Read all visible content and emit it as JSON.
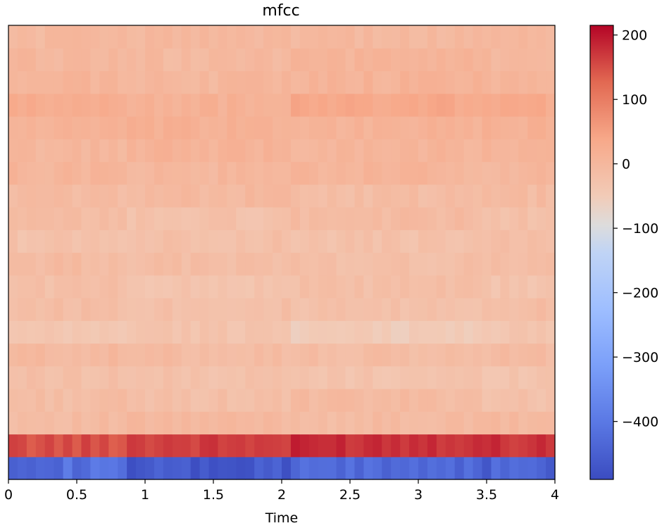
{
  "chart_data": {
    "type": "heatmap",
    "title": "mfcc",
    "xlabel": "Time",
    "ylabel": "",
    "xlim": [
      0,
      4.0
    ],
    "x_ticks": [
      0,
      0.5,
      1,
      1.5,
      2,
      2.5,
      3,
      3.5,
      4
    ],
    "x_tick_labels": [
      "0",
      "0.5",
      "1",
      "1.5",
      "2",
      "2.5",
      "3",
      "3.5",
      "4"
    ],
    "n_coefficients": 20,
    "segments": [
      {
        "start": 0.0,
        "end": 0.85
      },
      {
        "start": 0.85,
        "end": 2.1
      },
      {
        "start": 2.1,
        "end": 3.45
      },
      {
        "start": 3.45,
        "end": 4.0
      }
    ],
    "rows_bottom_to_top": [
      {
        "coef": 0,
        "segment_values": [
          -420,
          -470,
          -430,
          -440
        ]
      },
      {
        "coef": 1,
        "segment_values": [
          150,
          165,
          180,
          175
        ]
      },
      {
        "coef": 2,
        "segment_values": [
          -10,
          -5,
          -10,
          -5
        ]
      },
      {
        "coef": 3,
        "segment_values": [
          -15,
          -20,
          -10,
          -25
        ]
      },
      {
        "coef": 4,
        "segment_values": [
          -20,
          -25,
          -30,
          -30
        ]
      },
      {
        "coef": 5,
        "segment_values": [
          -5,
          -10,
          -15,
          -10
        ]
      },
      {
        "coef": 6,
        "segment_values": [
          -40,
          -30,
          -50,
          -35
        ]
      },
      {
        "coef": 7,
        "segment_values": [
          -15,
          -20,
          -25,
          -15
        ]
      },
      {
        "coef": 8,
        "segment_values": [
          -20,
          -30,
          -20,
          -30
        ]
      },
      {
        "coef": 9,
        "segment_values": [
          -10,
          -15,
          -20,
          -15
        ]
      },
      {
        "coef": 10,
        "segment_values": [
          -25,
          -20,
          -25,
          -20
        ]
      },
      {
        "coef": 11,
        "segment_values": [
          -15,
          -25,
          -10,
          -20
        ]
      },
      {
        "coef": 12,
        "segment_values": [
          -10,
          -5,
          -15,
          -10
        ]
      },
      {
        "coef": 13,
        "segment_values": [
          5,
          0,
          5,
          0
        ]
      },
      {
        "coef": 14,
        "segment_values": [
          0,
          10,
          5,
          5
        ]
      },
      {
        "coef": 15,
        "segment_values": [
          10,
          15,
          10,
          15
        ]
      },
      {
        "coef": 16,
        "segment_values": [
          25,
          15,
          35,
          30
        ]
      },
      {
        "coef": 17,
        "segment_values": [
          5,
          0,
          10,
          5
        ]
      },
      {
        "coef": 18,
        "segment_values": [
          0,
          -5,
          5,
          0
        ]
      },
      {
        "coef": 19,
        "segment_values": [
          -5,
          0,
          -5,
          0
        ]
      }
    ],
    "colorbar": {
      "colormap": "coolwarm",
      "vmin": -490,
      "vmax": 215,
      "ticks": [
        200,
        100,
        0,
        -100,
        -200,
        -300,
        -400
      ],
      "tick_labels": [
        "200",
        "100",
        "0",
        "−100",
        "−200",
        "−300",
        "−400"
      ]
    }
  }
}
